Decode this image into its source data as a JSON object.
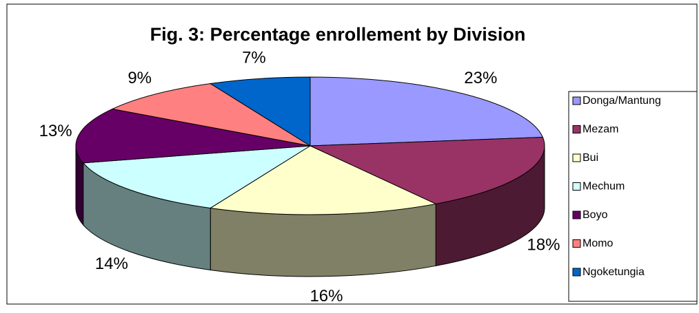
{
  "chart_data": {
    "type": "pie3d",
    "title": "Fig. 3: Percentage enrollement by Division",
    "categories": [
      "Donga/Mantung",
      "Mezam",
      "Bui",
      "Mechum",
      "Boyo",
      "Momo",
      "Ngoketungia"
    ],
    "values": [
      23,
      18,
      16,
      14,
      13,
      9,
      7
    ],
    "value_labels": [
      "23%",
      "18%",
      "16%",
      "14%",
      "13%",
      "9%",
      "7%"
    ],
    "colors": [
      "#9999ff",
      "#993366",
      "#ffffcc",
      "#ccffff",
      "#660066",
      "#ff8080",
      "#0066cc"
    ],
    "legend": "right"
  }
}
